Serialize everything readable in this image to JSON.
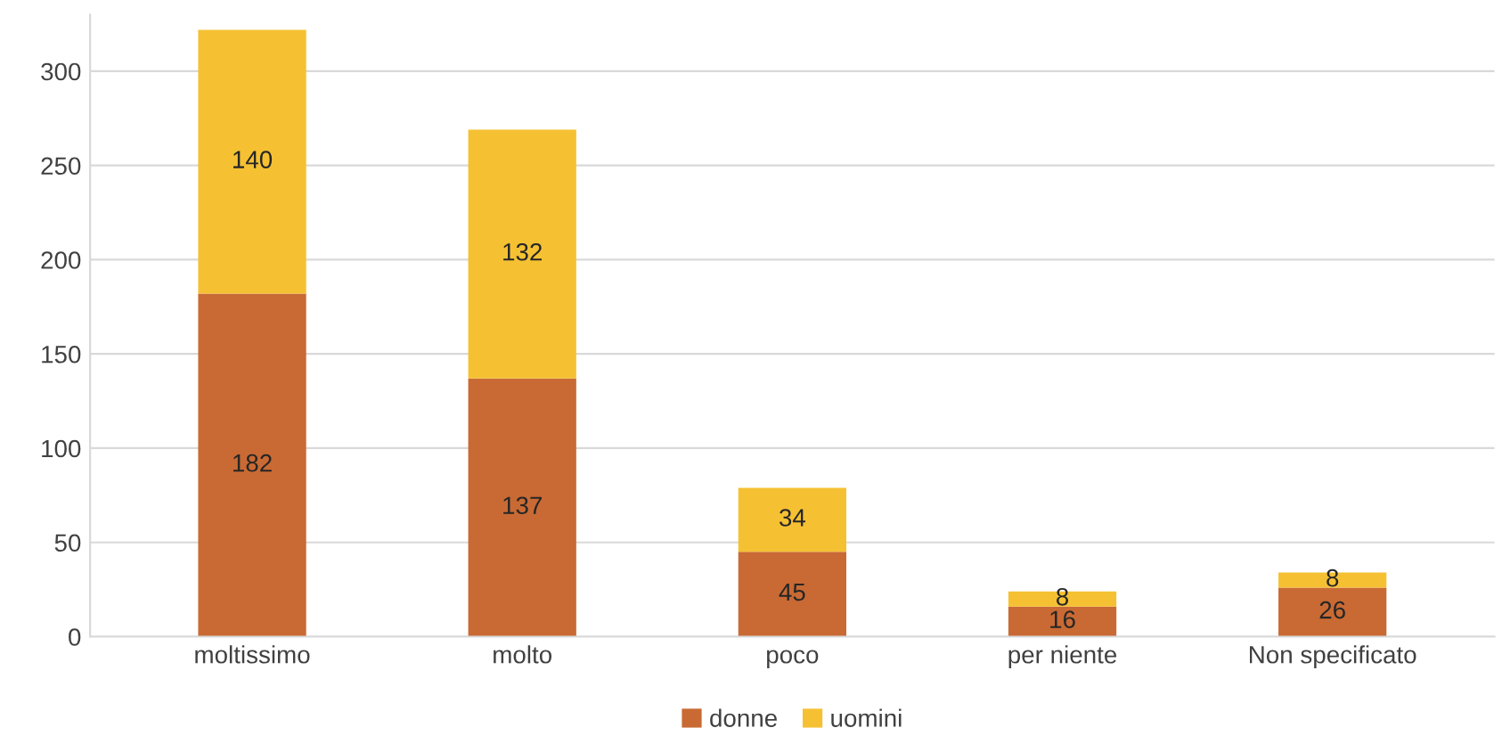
{
  "chart_data": {
    "type": "bar",
    "stacked": true,
    "categories": [
      "moltissimo",
      "molto",
      "poco",
      "per niente",
      "Non specificato"
    ],
    "series": [
      {
        "name": "donne",
        "color": "#c96a34",
        "values": [
          182,
          137,
          45,
          16,
          26
        ]
      },
      {
        "name": "uomini",
        "color": "#f5c133",
        "values": [
          140,
          132,
          34,
          8,
          8
        ]
      }
    ],
    "ylim": [
      0,
      330
    ],
    "yticks": [
      0,
      50,
      100,
      150,
      200,
      250,
      300
    ],
    "grid": "y",
    "legend": "bottom",
    "data_labels": true
  }
}
